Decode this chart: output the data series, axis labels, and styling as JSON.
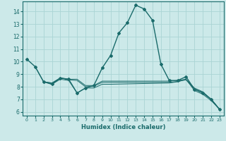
{
  "xlabel": "Humidex (Indice chaleur)",
  "background_color": "#cce9e9",
  "grid_color": "#aad4d4",
  "line_color": "#1a6b6b",
  "xlim": [
    -0.5,
    23.5
  ],
  "ylim": [
    5.7,
    14.8
  ],
  "yticks": [
    6,
    7,
    8,
    9,
    10,
    11,
    12,
    13,
    14
  ],
  "xticks": [
    0,
    1,
    2,
    3,
    4,
    5,
    6,
    7,
    8,
    9,
    10,
    11,
    12,
    13,
    14,
    15,
    16,
    17,
    18,
    19,
    20,
    21,
    22,
    23
  ],
  "series": [
    {
      "x": [
        0,
        1,
        2,
        3,
        4,
        5,
        6,
        7,
        8,
        9,
        10,
        11,
        12,
        13,
        14,
        15,
        16,
        17,
        18,
        19,
        20,
        21,
        22,
        23
      ],
      "y": [
        10.2,
        9.6,
        8.4,
        8.2,
        8.7,
        8.6,
        7.5,
        7.9,
        8.1,
        9.5,
        10.5,
        12.3,
        13.1,
        14.5,
        14.2,
        13.3,
        9.8,
        8.5,
        8.5,
        8.8,
        7.8,
        7.5,
        7.0,
        6.2
      ],
      "with_markers": true,
      "lw": 1.0
    },
    {
      "x": [
        1,
        2,
        3,
        4,
        5,
        6,
        7,
        8,
        9,
        10,
        17,
        18,
        19,
        20,
        21,
        22,
        23
      ],
      "y": [
        9.6,
        8.4,
        8.3,
        8.7,
        8.6,
        8.6,
        8.1,
        8.1,
        8.45,
        8.45,
        8.45,
        8.5,
        8.6,
        7.9,
        7.6,
        7.0,
        6.2
      ],
      "with_markers": false,
      "lw": 0.7
    },
    {
      "x": [
        2,
        3,
        4,
        5,
        6,
        7,
        8,
        9,
        10,
        17,
        18,
        19,
        20,
        21,
        22,
        23
      ],
      "y": [
        8.4,
        8.3,
        8.7,
        8.55,
        8.5,
        8.0,
        8.05,
        8.35,
        8.35,
        8.35,
        8.42,
        8.55,
        7.82,
        7.55,
        7.02,
        6.2
      ],
      "with_markers": false,
      "lw": 0.7
    },
    {
      "x": [
        2,
        3,
        4,
        5,
        6,
        7,
        8,
        9,
        10,
        17,
        18,
        19,
        20,
        21,
        22,
        23
      ],
      "y": [
        8.4,
        8.2,
        8.6,
        8.5,
        7.5,
        7.9,
        7.9,
        8.2,
        8.2,
        8.3,
        8.4,
        8.6,
        7.7,
        7.4,
        6.9,
        6.2
      ],
      "with_markers": false,
      "lw": 0.7
    }
  ]
}
